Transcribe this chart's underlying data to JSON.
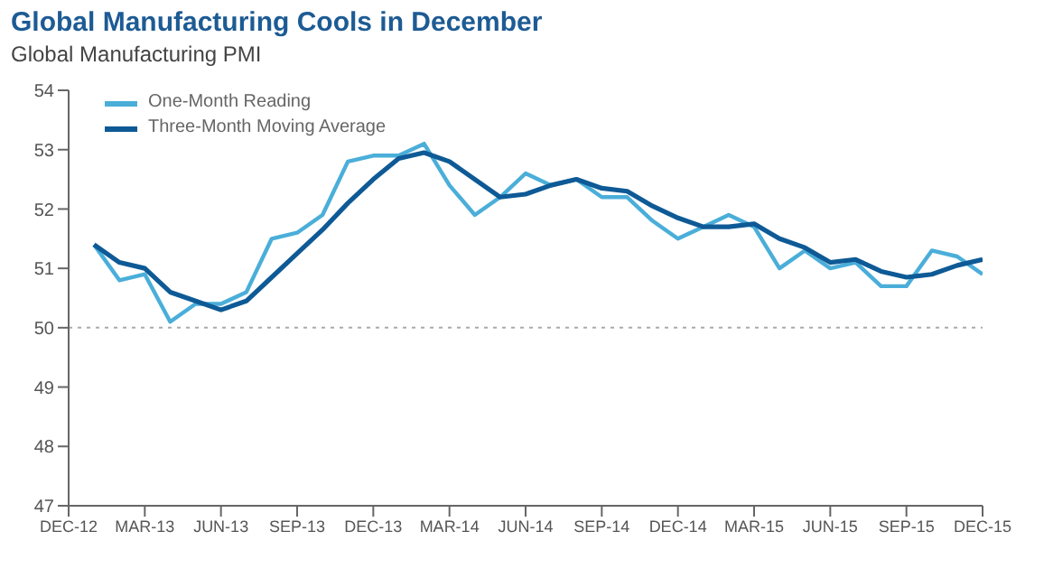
{
  "chart_data": {
    "type": "line",
    "title": "Global Manufacturing Cools in December",
    "subtitle": "Global Manufacturing PMI",
    "categories": [
      "DEC-12",
      null,
      null,
      "MAR-13",
      null,
      null,
      "JUN-13",
      null,
      null,
      "SEP-13",
      null,
      null,
      "DEC-13",
      null,
      null,
      "MAR-14",
      null,
      null,
      "JUN-14",
      null,
      null,
      "SEP-14",
      null,
      null,
      "DEC-14",
      null,
      null,
      "MAR-15",
      null,
      null,
      "JUN-15",
      null,
      null,
      "SEP-15",
      null,
      null,
      "DEC-15"
    ],
    "series": [
      {
        "name": "One-Month Reading",
        "color": "#4aaed9",
        "values": [
          null,
          51.4,
          50.8,
          50.9,
          50.1,
          50.4,
          50.4,
          50.6,
          51.5,
          51.6,
          51.9,
          52.8,
          52.9,
          52.9,
          53.1,
          52.4,
          51.9,
          52.2,
          52.6,
          52.4,
          52.5,
          52.2,
          52.2,
          51.8,
          51.5,
          51.7,
          51.9,
          51.7,
          51.0,
          51.3,
          51.0,
          51.1,
          50.7,
          50.7,
          51.3,
          51.2,
          50.9
        ]
      },
      {
        "name": "Three-Month Moving Average",
        "color": "#0e5a96",
        "values": [
          null,
          51.4,
          51.1,
          51.0,
          50.6,
          50.45,
          50.3,
          50.45,
          50.85,
          51.25,
          51.65,
          52.1,
          52.5,
          52.85,
          52.95,
          52.8,
          52.5,
          52.2,
          52.25,
          52.4,
          52.5,
          52.35,
          52.3,
          52.05,
          51.85,
          51.7,
          51.7,
          51.75,
          51.5,
          51.35,
          51.1,
          51.15,
          50.95,
          50.85,
          50.9,
          51.05,
          51.15
        ]
      }
    ],
    "ylim": [
      47,
      54
    ],
    "yticks": [
      47,
      48,
      49,
      50,
      51,
      52,
      53,
      54
    ],
    "ref_lines": [
      {
        "axis": "y",
        "value": 50,
        "color": "#aaaaaa",
        "line_style": "dotted"
      }
    ],
    "legend": "top left",
    "grid": false,
    "marker": "none",
    "line_style": "solid"
  }
}
